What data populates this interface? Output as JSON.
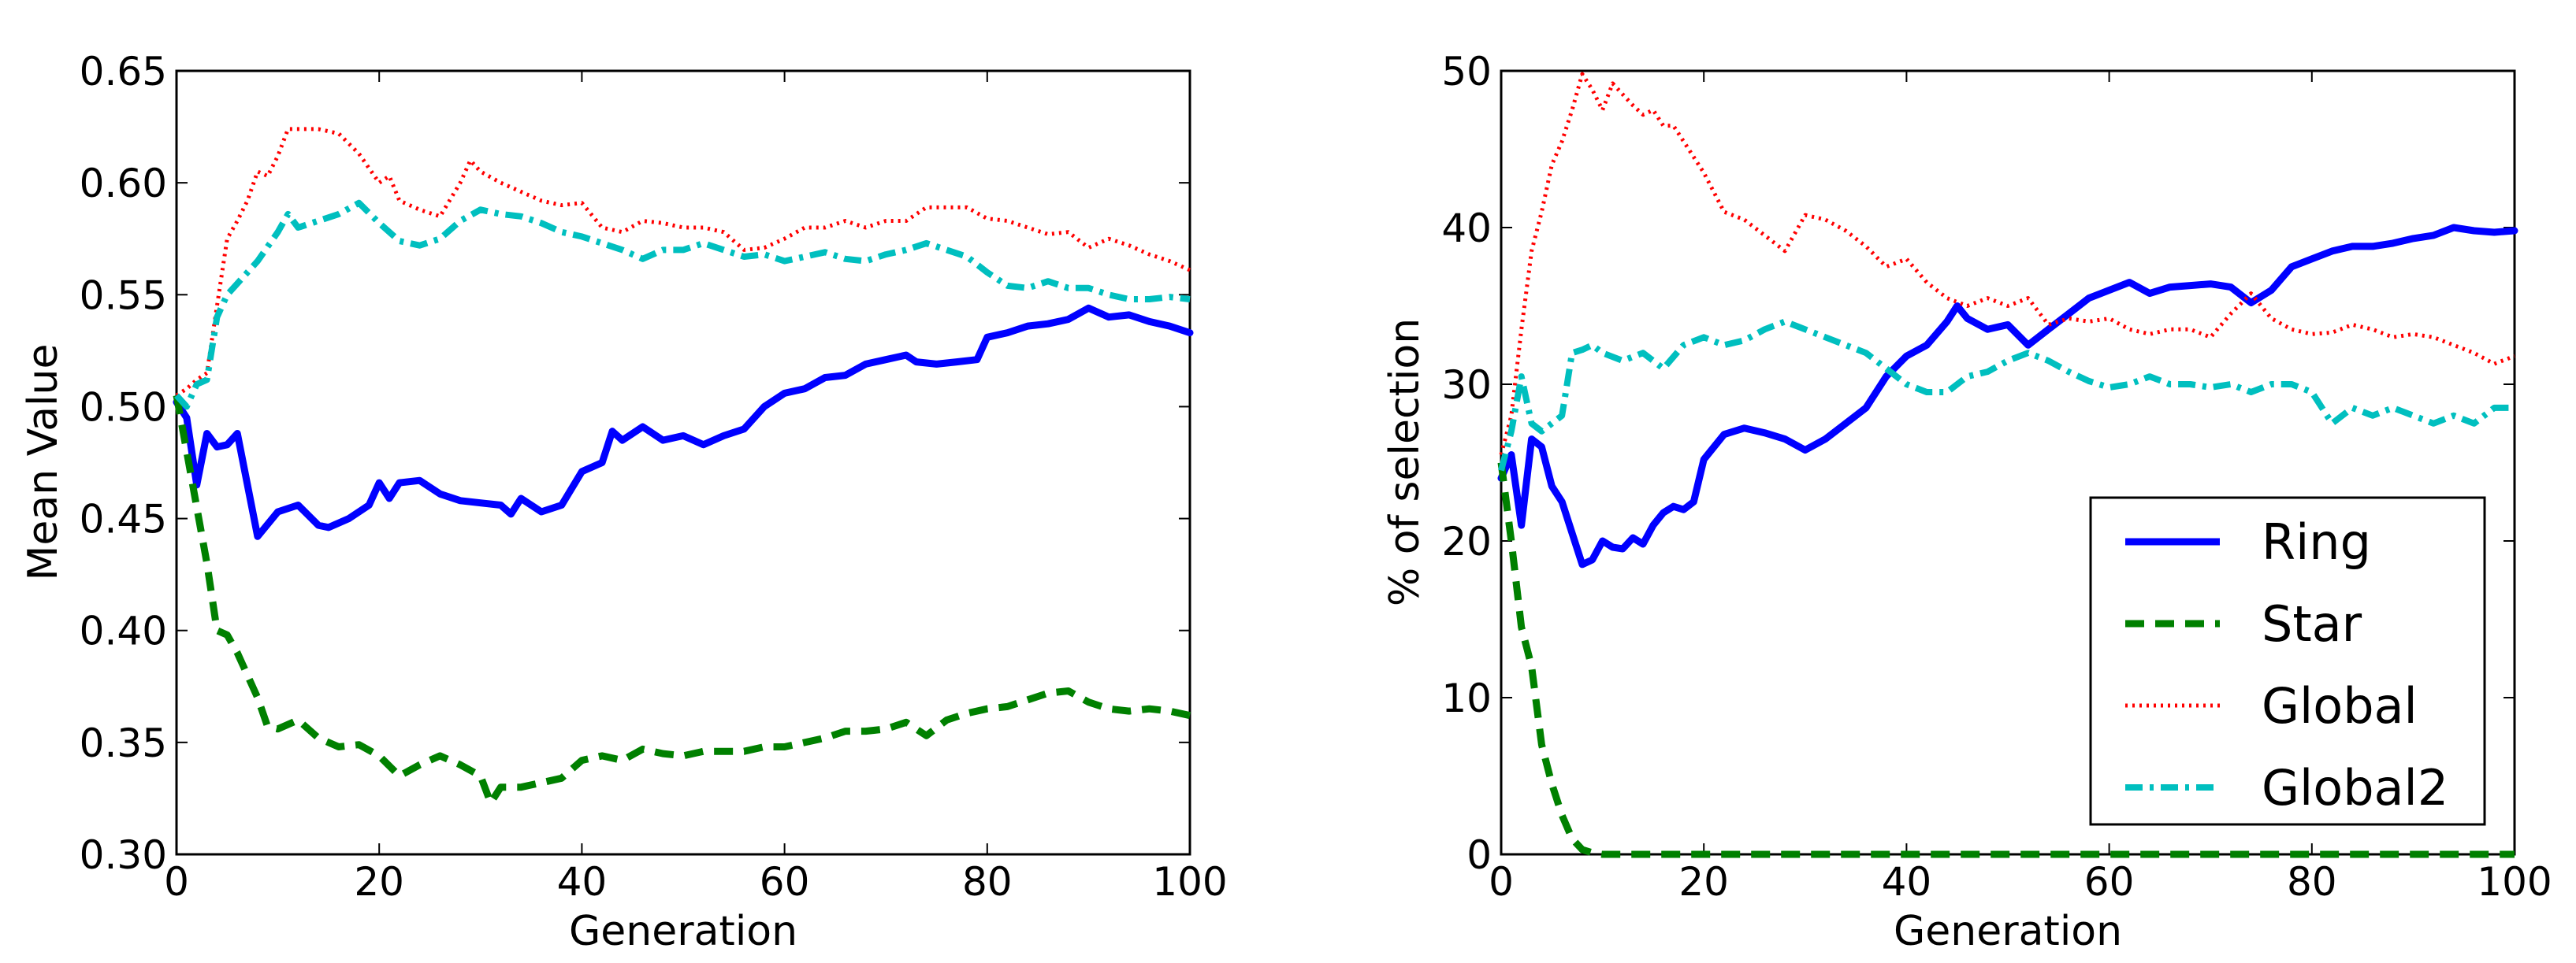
{
  "chart_data": [
    {
      "type": "line",
      "title": "",
      "xlabel": "Generation",
      "ylabel": "Mean Value",
      "xlim": [
        0,
        100
      ],
      "ylim": [
        0.3,
        0.65
      ],
      "xticks": [
        "0",
        "20",
        "40",
        "60",
        "80",
        "100"
      ],
      "yticks": [
        "0.30",
        "0.35",
        "0.40",
        "0.45",
        "0.50",
        "0.55",
        "0.60",
        "0.65"
      ],
      "grid": false,
      "series": [
        {
          "name": "Ring",
          "color": "#0000ff",
          "style": "solid",
          "x": [
            0,
            1,
            2,
            3,
            4,
            5,
            6,
            8,
            10,
            12,
            14,
            15,
            17,
            19,
            20,
            21,
            22,
            24,
            26,
            28,
            30,
            32,
            33,
            34,
            36,
            38,
            40,
            42,
            43,
            44,
            46,
            48,
            50,
            52,
            54,
            56,
            58,
            60,
            62,
            64,
            66,
            68,
            70,
            72,
            73,
            75,
            77,
            79,
            80,
            82,
            84,
            86,
            88,
            90,
            92,
            94,
            96,
            98,
            100
          ],
          "values": [
            0.502,
            0.495,
            0.465,
            0.488,
            0.482,
            0.483,
            0.488,
            0.442,
            0.453,
            0.456,
            0.447,
            0.446,
            0.45,
            0.456,
            0.466,
            0.459,
            0.466,
            0.467,
            0.461,
            0.458,
            0.457,
            0.456,
            0.452,
            0.459,
            0.453,
            0.456,
            0.471,
            0.475,
            0.489,
            0.485,
            0.491,
            0.485,
            0.487,
            0.483,
            0.487,
            0.49,
            0.5,
            0.506,
            0.508,
            0.513,
            0.514,
            0.519,
            0.521,
            0.523,
            0.52,
            0.519,
            0.52,
            0.521,
            0.531,
            0.533,
            0.536,
            0.537,
            0.539,
            0.544,
            0.54,
            0.541,
            0.538,
            0.536,
            0.533
          ]
        },
        {
          "name": "Star",
          "color": "#008000",
          "style": "dashed",
          "x": [
            0,
            1,
            2,
            3,
            4,
            5,
            6,
            8,
            9,
            10,
            12,
            14,
            16,
            18,
            20,
            22,
            24,
            26,
            28,
            30,
            31,
            32,
            34,
            36,
            38,
            40,
            42,
            44,
            46,
            48,
            50,
            52,
            54,
            56,
            58,
            60,
            62,
            64,
            66,
            68,
            70,
            72,
            74,
            76,
            78,
            80,
            82,
            84,
            86,
            88,
            90,
            92,
            94,
            96,
            98,
            100
          ],
          "values": [
            0.505,
            0.48,
            0.455,
            0.43,
            0.4,
            0.398,
            0.39,
            0.37,
            0.357,
            0.356,
            0.36,
            0.352,
            0.348,
            0.349,
            0.344,
            0.335,
            0.34,
            0.344,
            0.34,
            0.335,
            0.323,
            0.33,
            0.33,
            0.332,
            0.334,
            0.342,
            0.344,
            0.342,
            0.347,
            0.345,
            0.344,
            0.346,
            0.346,
            0.346,
            0.348,
            0.348,
            0.35,
            0.352,
            0.355,
            0.355,
            0.356,
            0.359,
            0.353,
            0.36,
            0.363,
            0.365,
            0.366,
            0.369,
            0.372,
            0.373,
            0.368,
            0.365,
            0.364,
            0.365,
            0.364,
            0.362
          ]
        },
        {
          "name": "Global",
          "color": "#ff0000",
          "style": "dotted",
          "x": [
            0,
            1,
            2,
            3,
            4,
            5,
            6,
            7,
            8,
            9,
            10,
            11,
            12,
            14,
            16,
            18,
            20,
            21,
            22,
            24,
            26,
            28,
            29,
            30,
            32,
            34,
            36,
            38,
            40,
            42,
            44,
            46,
            48,
            50,
            52,
            54,
            56,
            58,
            60,
            62,
            64,
            66,
            68,
            70,
            72,
            74,
            76,
            78,
            80,
            82,
            84,
            86,
            88,
            90,
            92,
            94,
            96,
            98,
            100
          ],
          "values": [
            0.505,
            0.508,
            0.512,
            0.515,
            0.545,
            0.575,
            0.583,
            0.592,
            0.605,
            0.603,
            0.612,
            0.624,
            0.624,
            0.624,
            0.622,
            0.613,
            0.6,
            0.603,
            0.592,
            0.588,
            0.585,
            0.6,
            0.61,
            0.605,
            0.6,
            0.596,
            0.592,
            0.59,
            0.591,
            0.58,
            0.578,
            0.583,
            0.582,
            0.58,
            0.58,
            0.578,
            0.57,
            0.571,
            0.575,
            0.58,
            0.58,
            0.583,
            0.58,
            0.583,
            0.583,
            0.589,
            0.589,
            0.589,
            0.584,
            0.583,
            0.58,
            0.577,
            0.578,
            0.571,
            0.575,
            0.572,
            0.568,
            0.565,
            0.561
          ]
        },
        {
          "name": "Global2",
          "color": "#00bfbf",
          "style": "dashdot",
          "x": [
            0,
            1,
            2,
            3,
            4,
            5,
            6,
            8,
            10,
            11,
            12,
            14,
            16,
            18,
            20,
            22,
            24,
            26,
            28,
            30,
            32,
            34,
            36,
            38,
            40,
            42,
            44,
            46,
            48,
            50,
            52,
            54,
            56,
            58,
            60,
            62,
            64,
            66,
            68,
            70,
            72,
            74,
            76,
            78,
            80,
            82,
            84,
            86,
            88,
            90,
            92,
            94,
            96,
            98,
            100
          ],
          "values": [
            0.505,
            0.5,
            0.51,
            0.512,
            0.54,
            0.55,
            0.555,
            0.565,
            0.578,
            0.586,
            0.58,
            0.583,
            0.586,
            0.591,
            0.582,
            0.574,
            0.572,
            0.575,
            0.583,
            0.588,
            0.586,
            0.585,
            0.582,
            0.578,
            0.576,
            0.573,
            0.57,
            0.566,
            0.57,
            0.57,
            0.573,
            0.57,
            0.567,
            0.568,
            0.565,
            0.567,
            0.569,
            0.566,
            0.565,
            0.568,
            0.57,
            0.573,
            0.57,
            0.567,
            0.56,
            0.554,
            0.553,
            0.556,
            0.553,
            0.553,
            0.55,
            0.548,
            0.548,
            0.549,
            0.548
          ]
        }
      ]
    },
    {
      "type": "line",
      "title": "",
      "xlabel": "Generation",
      "ylabel": "% of selection",
      "xlim": [
        0,
        100
      ],
      "ylim": [
        0,
        50
      ],
      "xticks": [
        "0",
        "20",
        "40",
        "60",
        "80",
        "100"
      ],
      "yticks": [
        "0",
        "10",
        "20",
        "30",
        "40",
        "50"
      ],
      "grid": false,
      "legend": {
        "placement": "lower-right",
        "entries": [
          {
            "label": "Ring",
            "color": "#0000ff",
            "style": "solid"
          },
          {
            "label": "Star",
            "color": "#008000",
            "style": "dashed"
          },
          {
            "label": "Global",
            "color": "#ff0000",
            "style": "dotted"
          },
          {
            "label": "Global2",
            "color": "#00bfbf",
            "style": "dashdot"
          }
        ]
      },
      "series": [
        {
          "name": "Ring",
          "color": "#0000ff",
          "style": "solid",
          "x": [
            0,
            1,
            2,
            3,
            4,
            5,
            6,
            7,
            8,
            9,
            10,
            11,
            12,
            13,
            14,
            15,
            16,
            17,
            18,
            19,
            20,
            22,
            24,
            26,
            28,
            30,
            32,
            34,
            36,
            38,
            40,
            42,
            44,
            45,
            46,
            48,
            50,
            52,
            54,
            56,
            58,
            60,
            62,
            64,
            66,
            68,
            70,
            72,
            74,
            76,
            78,
            80,
            82,
            84,
            86,
            88,
            90,
            92,
            94,
            96,
            98,
            100
          ],
          "values": [
            24.0,
            25.5,
            21.0,
            26.5,
            26.0,
            23.5,
            22.5,
            20.5,
            18.5,
            18.8,
            20.0,
            19.6,
            19.5,
            20.2,
            19.8,
            21.0,
            21.8,
            22.2,
            22.0,
            22.5,
            25.2,
            26.8,
            27.2,
            26.9,
            26.5,
            25.8,
            26.5,
            27.5,
            28.5,
            30.5,
            31.8,
            32.5,
            34.0,
            35.0,
            34.2,
            33.5,
            33.8,
            32.5,
            33.5,
            34.5,
            35.5,
            36.0,
            36.5,
            35.8,
            36.2,
            36.3,
            36.4,
            36.2,
            35.2,
            36.0,
            37.5,
            38.0,
            38.5,
            38.8,
            38.8,
            39.0,
            39.3,
            39.5,
            40.0,
            39.8,
            39.7,
            39.8
          ]
        },
        {
          "name": "Star",
          "color": "#008000",
          "style": "dashed",
          "x": [
            0,
            1,
            2,
            3,
            4,
            5,
            6,
            7,
            8,
            9,
            10,
            20,
            40,
            60,
            80,
            100
          ],
          "values": [
            25.0,
            20.0,
            14.5,
            12.0,
            7.0,
            4.5,
            2.5,
            1.0,
            0.3,
            0.1,
            0.0,
            0.0,
            0.0,
            0.0,
            0.0,
            0.0
          ]
        },
        {
          "name": "Global",
          "color": "#ff0000",
          "style": "dotted",
          "x": [
            0,
            1,
            2,
            3,
            4,
            5,
            6,
            7,
            8,
            9,
            10,
            11,
            12,
            13,
            14,
            15,
            16,
            17,
            18,
            20,
            22,
            24,
            26,
            28,
            30,
            32,
            34,
            36,
            38,
            40,
            42,
            44,
            46,
            48,
            50,
            52,
            54,
            56,
            58,
            60,
            62,
            64,
            66,
            68,
            70,
            72,
            74,
            76,
            78,
            80,
            82,
            84,
            86,
            88,
            90,
            92,
            94,
            96,
            98,
            100
          ],
          "values": [
            25.5,
            28.0,
            33.5,
            38.5,
            41.0,
            44.0,
            45.5,
            47.5,
            49.8,
            48.8,
            47.5,
            49.2,
            48.5,
            47.8,
            47.2,
            47.5,
            46.5,
            46.5,
            45.5,
            43.5,
            41.0,
            40.5,
            39.5,
            38.5,
            40.8,
            40.5,
            39.8,
            38.8,
            37.5,
            38.0,
            36.5,
            35.5,
            35.0,
            35.5,
            35.0,
            35.5,
            33.8,
            34.2,
            34.0,
            34.2,
            33.5,
            33.2,
            33.5,
            33.5,
            33.0,
            34.5,
            35.8,
            34.2,
            33.5,
            33.2,
            33.3,
            33.8,
            33.5,
            33.0,
            33.2,
            33.0,
            32.5,
            32.0,
            31.3,
            31.8
          ]
        },
        {
          "name": "Global2",
          "color": "#00bfbf",
          "style": "dashdot",
          "x": [
            0,
            1,
            2,
            3,
            4,
            5,
            6,
            7,
            8,
            9,
            10,
            12,
            14,
            16,
            18,
            20,
            22,
            24,
            26,
            28,
            30,
            32,
            34,
            36,
            38,
            40,
            42,
            44,
            46,
            48,
            50,
            52,
            54,
            56,
            58,
            60,
            62,
            64,
            66,
            68,
            70,
            72,
            74,
            76,
            78,
            80,
            82,
            84,
            86,
            88,
            90,
            92,
            94,
            96,
            98,
            100
          ],
          "values": [
            24.5,
            27.0,
            30.5,
            27.5,
            27.0,
            27.5,
            28.0,
            32.0,
            32.2,
            32.5,
            32.0,
            31.5,
            32.0,
            31.0,
            32.5,
            33.0,
            32.5,
            32.8,
            33.5,
            34.0,
            33.5,
            33.0,
            32.5,
            32.0,
            31.0,
            30.0,
            29.5,
            29.5,
            30.5,
            30.8,
            31.5,
            32.0,
            31.5,
            30.8,
            30.2,
            29.8,
            30.0,
            30.5,
            30.0,
            30.0,
            29.8,
            30.0,
            29.5,
            30.0,
            30.0,
            29.5,
            27.5,
            28.5,
            28.0,
            28.5,
            28.0,
            27.5,
            28.0,
            27.5,
            28.5,
            28.5
          ]
        }
      ]
    }
  ]
}
